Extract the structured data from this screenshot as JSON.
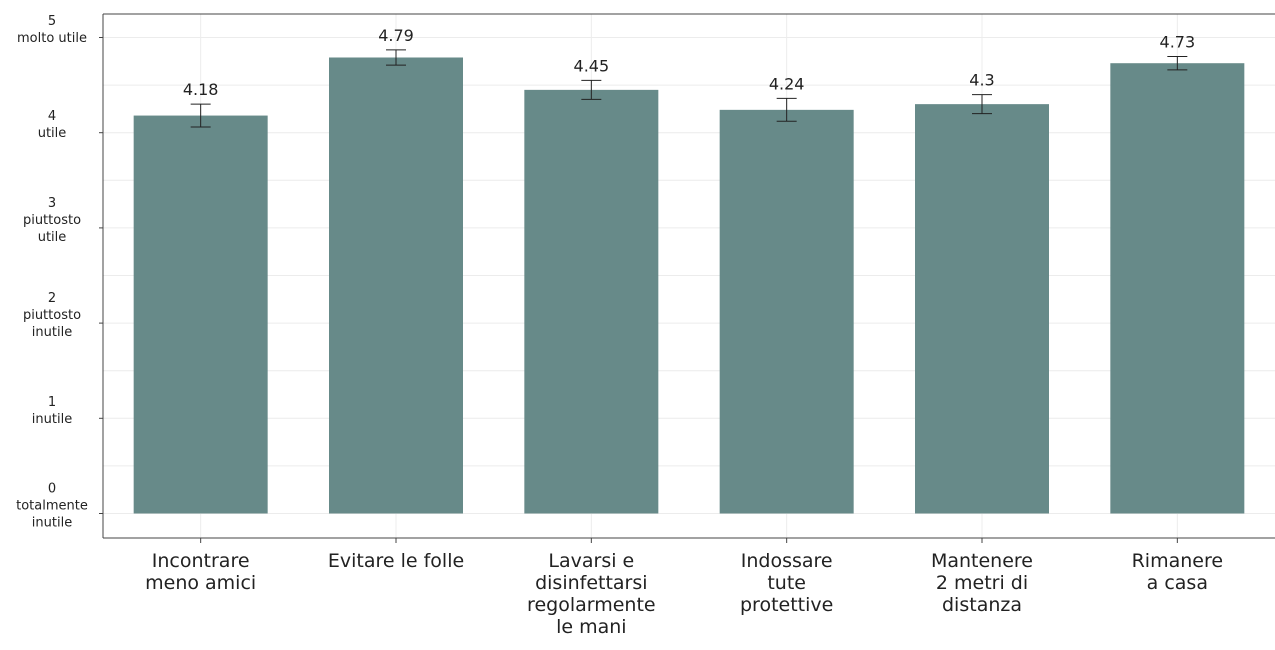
{
  "chart_data": {
    "type": "bar",
    "title": "",
    "xlabel": "",
    "ylabel": "",
    "ylim": [
      0,
      5
    ],
    "grid": true,
    "bar_color": "#678a89",
    "categories": [
      [
        "Incontrare",
        "meno amici"
      ],
      [
        "Evitare le folle"
      ],
      [
        "Lavarsi e",
        "disinfettarsi",
        "regolarmente",
        "le mani"
      ],
      [
        "Indossare",
        "tute",
        "protettive"
      ],
      [
        "Mantenere",
        "2 metri di",
        "distanza"
      ],
      [
        "Rimanere",
        "a casa"
      ]
    ],
    "values": [
      4.18,
      4.79,
      4.45,
      4.24,
      4.3,
      4.73
    ],
    "value_labels": [
      "4.18",
      "4.79",
      "4.45",
      "4.24",
      "4.3",
      "4.73"
    ],
    "error_low": [
      4.06,
      4.71,
      4.35,
      4.12,
      4.2,
      4.66
    ],
    "error_high": [
      4.3,
      4.87,
      4.55,
      4.36,
      4.4,
      4.8
    ],
    "y_ticks": [
      {
        "value": 0,
        "lines": [
          "0",
          "totalmente",
          "inutile"
        ]
      },
      {
        "value": 1,
        "lines": [
          "1",
          "inutile"
        ]
      },
      {
        "value": 2,
        "lines": [
          "2",
          "piuttosto",
          "inutile"
        ]
      },
      {
        "value": 3,
        "lines": [
          "3",
          "piuttosto",
          "utile"
        ]
      },
      {
        "value": 4,
        "lines": [
          "4",
          "utile"
        ]
      },
      {
        "value": 5,
        "lines": [
          "5",
          "molto utile"
        ]
      }
    ]
  }
}
